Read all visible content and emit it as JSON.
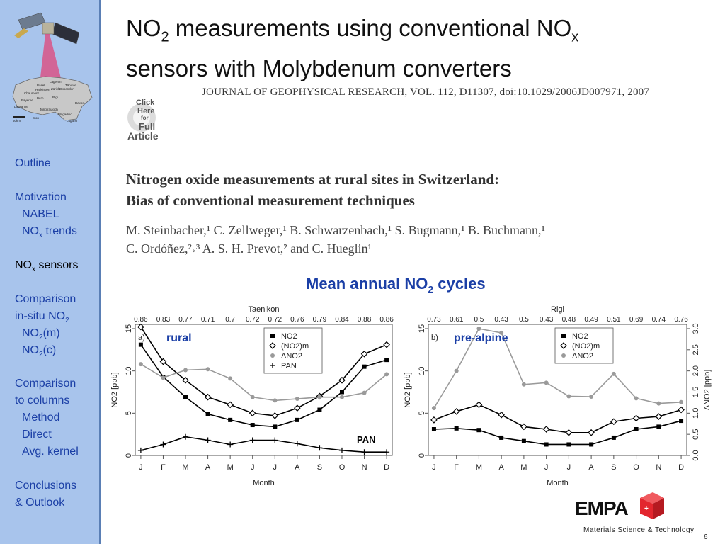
{
  "sidebar": {
    "map_places": [
      "Jungfraujoch",
      "Lägeren",
      "Tänikon",
      "Basel",
      "Dübendorf",
      "Zürich",
      "Härkingen",
      "Chaumont",
      "Rigi",
      "Payerne",
      "Bern",
      "Davos",
      "Lausanne",
      "Sion",
      "Magadino",
      "Lugano",
      "50km"
    ],
    "items": [
      {
        "label": "Outline",
        "active": false
      },
      {
        "label": "Motivation",
        "active": false
      },
      {
        "label": "NABEL",
        "active": false
      },
      {
        "label": "NO",
        "sub": "x",
        "tail": " trends",
        "active": false
      },
      {
        "label": "NO",
        "sub": "x",
        "tail": " sensors",
        "active": true
      },
      {
        "label": "Comparison",
        "active": false
      },
      {
        "label": "in-situ NO",
        "sub": "2",
        "tail": "",
        "active": false
      },
      {
        "label": "NO",
        "sub": "2",
        "tail": "(m)",
        "active": false
      },
      {
        "label": "NO",
        "sub": "2",
        "tail": "(c)",
        "active": false
      },
      {
        "label": "Comparison",
        "active": false
      },
      {
        "label": "to columns",
        "active": false
      },
      {
        "label": "Method",
        "active": false
      },
      {
        "label": "Direct",
        "active": false
      },
      {
        "label": "Avg. kernel",
        "active": false
      },
      {
        "label": "Conclusions",
        "active": false
      },
      {
        "label": "& Outlook",
        "active": false
      }
    ]
  },
  "title": {
    "part1": "NO",
    "sub1": "2",
    "part2": " measurements using conventional NO",
    "sub2": "x",
    "line2": "sensors with Molybdenum converters"
  },
  "journal_line": "JOURNAL OF GEOPHYSICAL RESEARCH, VOL. 112, D11307, doi:10.1029/2006JD007971, 2007",
  "click_logo": {
    "line1": "Click",
    "line2": "Here",
    "line3": "for",
    "line4": "Full",
    "line5": "Article"
  },
  "paper": {
    "title_line1": "Nitrogen oxide measurements at rural sites in Switzerland:",
    "title_line2": "Bias of conventional measurement techniques",
    "authors_line1": "M. Steinbacher,¹ C. Zellweger,¹ B. Schwarzenbach,¹ S. Bugmann,¹ B. Buchmann,¹",
    "authors_line2": "C. Ordóñez,²˒³ A. S. H. Prevot,² and C. Hueglin¹"
  },
  "chart_heading": {
    "part1": "Mean annual NO",
    "sub": "2",
    "part2": " cycles"
  },
  "chart_data": [
    {
      "type": "line",
      "title": "Taenikon",
      "panel_label": "a)",
      "annotation": "rural",
      "annotation2": "PAN",
      "xlabel": "Month",
      "ylabel": "NO2 [ppb]",
      "categories": [
        "J",
        "F",
        "M",
        "A",
        "M",
        "J",
        "J",
        "A",
        "S",
        "O",
        "N",
        "D"
      ],
      "ratios": [
        "0.86",
        "0.83",
        "0.77",
        "0.71",
        "0.7",
        "0.72",
        "0.72",
        "0.76",
        "0.79",
        "0.84",
        "0.88",
        "0.86"
      ],
      "ylim": [
        0,
        15.5
      ],
      "yticks": [
        0,
        5,
        10,
        15
      ],
      "legend": [
        "NO2",
        "(NO2)m",
        "ΔNO2",
        "PAN"
      ],
      "legend_position": "top-right",
      "series": [
        {
          "name": "NO2",
          "marker": "square",
          "color": "#000000",
          "values": [
            13.1,
            9.3,
            6.9,
            4.9,
            4.2,
            3.6,
            3.4,
            4.2,
            5.4,
            7.5,
            10.5,
            11.3
          ]
        },
        {
          "name": "(NO2)m",
          "marker": "diamond",
          "color": "#000000",
          "values": [
            15.2,
            11.1,
            8.9,
            6.9,
            6.0,
            5.0,
            4.7,
            5.6,
            7.0,
            8.9,
            12.0,
            13.1
          ]
        },
        {
          "name": "ΔNO2",
          "marker": "circle",
          "color": "#9a9a9a",
          "values": [
            10.8,
            9.2,
            10.1,
            10.2,
            9.1,
            6.9,
            6.5,
            6.7,
            6.9,
            6.9,
            7.4,
            9.6
          ]
        },
        {
          "name": "PAN",
          "marker": "plus",
          "color": "#000000",
          "values": [
            0.6,
            1.3,
            2.2,
            1.8,
            1.3,
            1.8,
            1.8,
            1.4,
            0.9,
            0.6,
            0.4,
            0.4
          ]
        }
      ]
    },
    {
      "type": "line",
      "title": "Rigi",
      "panel_label": "b)",
      "annotation": "pre-alpine",
      "xlabel": "Month",
      "ylabel": "NO2 [ppb]",
      "ylabel_right": "ΔNO2 [ppb]",
      "categories": [
        "J",
        "F",
        "M",
        "A",
        "M",
        "J",
        "J",
        "A",
        "S",
        "O",
        "N",
        "D"
      ],
      "ratios": [
        "0.73",
        "0.61",
        "0.5",
        "0.43",
        "0.5",
        "0.43",
        "0.48",
        "0.49",
        "0.51",
        "0.69",
        "0.74",
        "0.76"
      ],
      "ylim": [
        0,
        15.5
      ],
      "yticks": [
        0,
        5,
        10,
        15
      ],
      "ylim_right": [
        0,
        3.1
      ],
      "yticks_right": [
        "0.0",
        "0.5",
        "1.0",
        "1.5",
        "2.0",
        "2.5",
        "3.0"
      ],
      "legend": [
        "NO2",
        "(NO2)m",
        "ΔNO2"
      ],
      "legend_position": "top-right",
      "series": [
        {
          "name": "NO2",
          "marker": "square",
          "color": "#000000",
          "axis": "left",
          "values": [
            3.1,
            3.2,
            3.0,
            2.1,
            1.7,
            1.3,
            1.3,
            1.3,
            2.1,
            3.1,
            3.4,
            4.1
          ]
        },
        {
          "name": "(NO2)m",
          "marker": "diamond",
          "color": "#000000",
          "axis": "left",
          "values": [
            4.2,
            5.2,
            6.0,
            4.8,
            3.4,
            3.1,
            2.7,
            2.7,
            4.0,
            4.4,
            4.6,
            5.4
          ]
        },
        {
          "name": "ΔNO2",
          "marker": "circle",
          "color": "#9a9a9a",
          "axis": "right",
          "values": [
            1.12,
            2.0,
            3.0,
            2.9,
            1.68,
            1.72,
            1.4,
            1.39,
            1.93,
            1.35,
            1.23,
            1.26
          ]
        }
      ]
    }
  ],
  "footer": {
    "logo_text": "EMPA",
    "tagline": "Materials Science & Technology",
    "page": "6"
  },
  "colors": {
    "sidebar_bg": "#a8c4ec",
    "nav_text": "#1b3fa6",
    "heading": "#1b3fa6",
    "empa_red": "#e3262e"
  }
}
